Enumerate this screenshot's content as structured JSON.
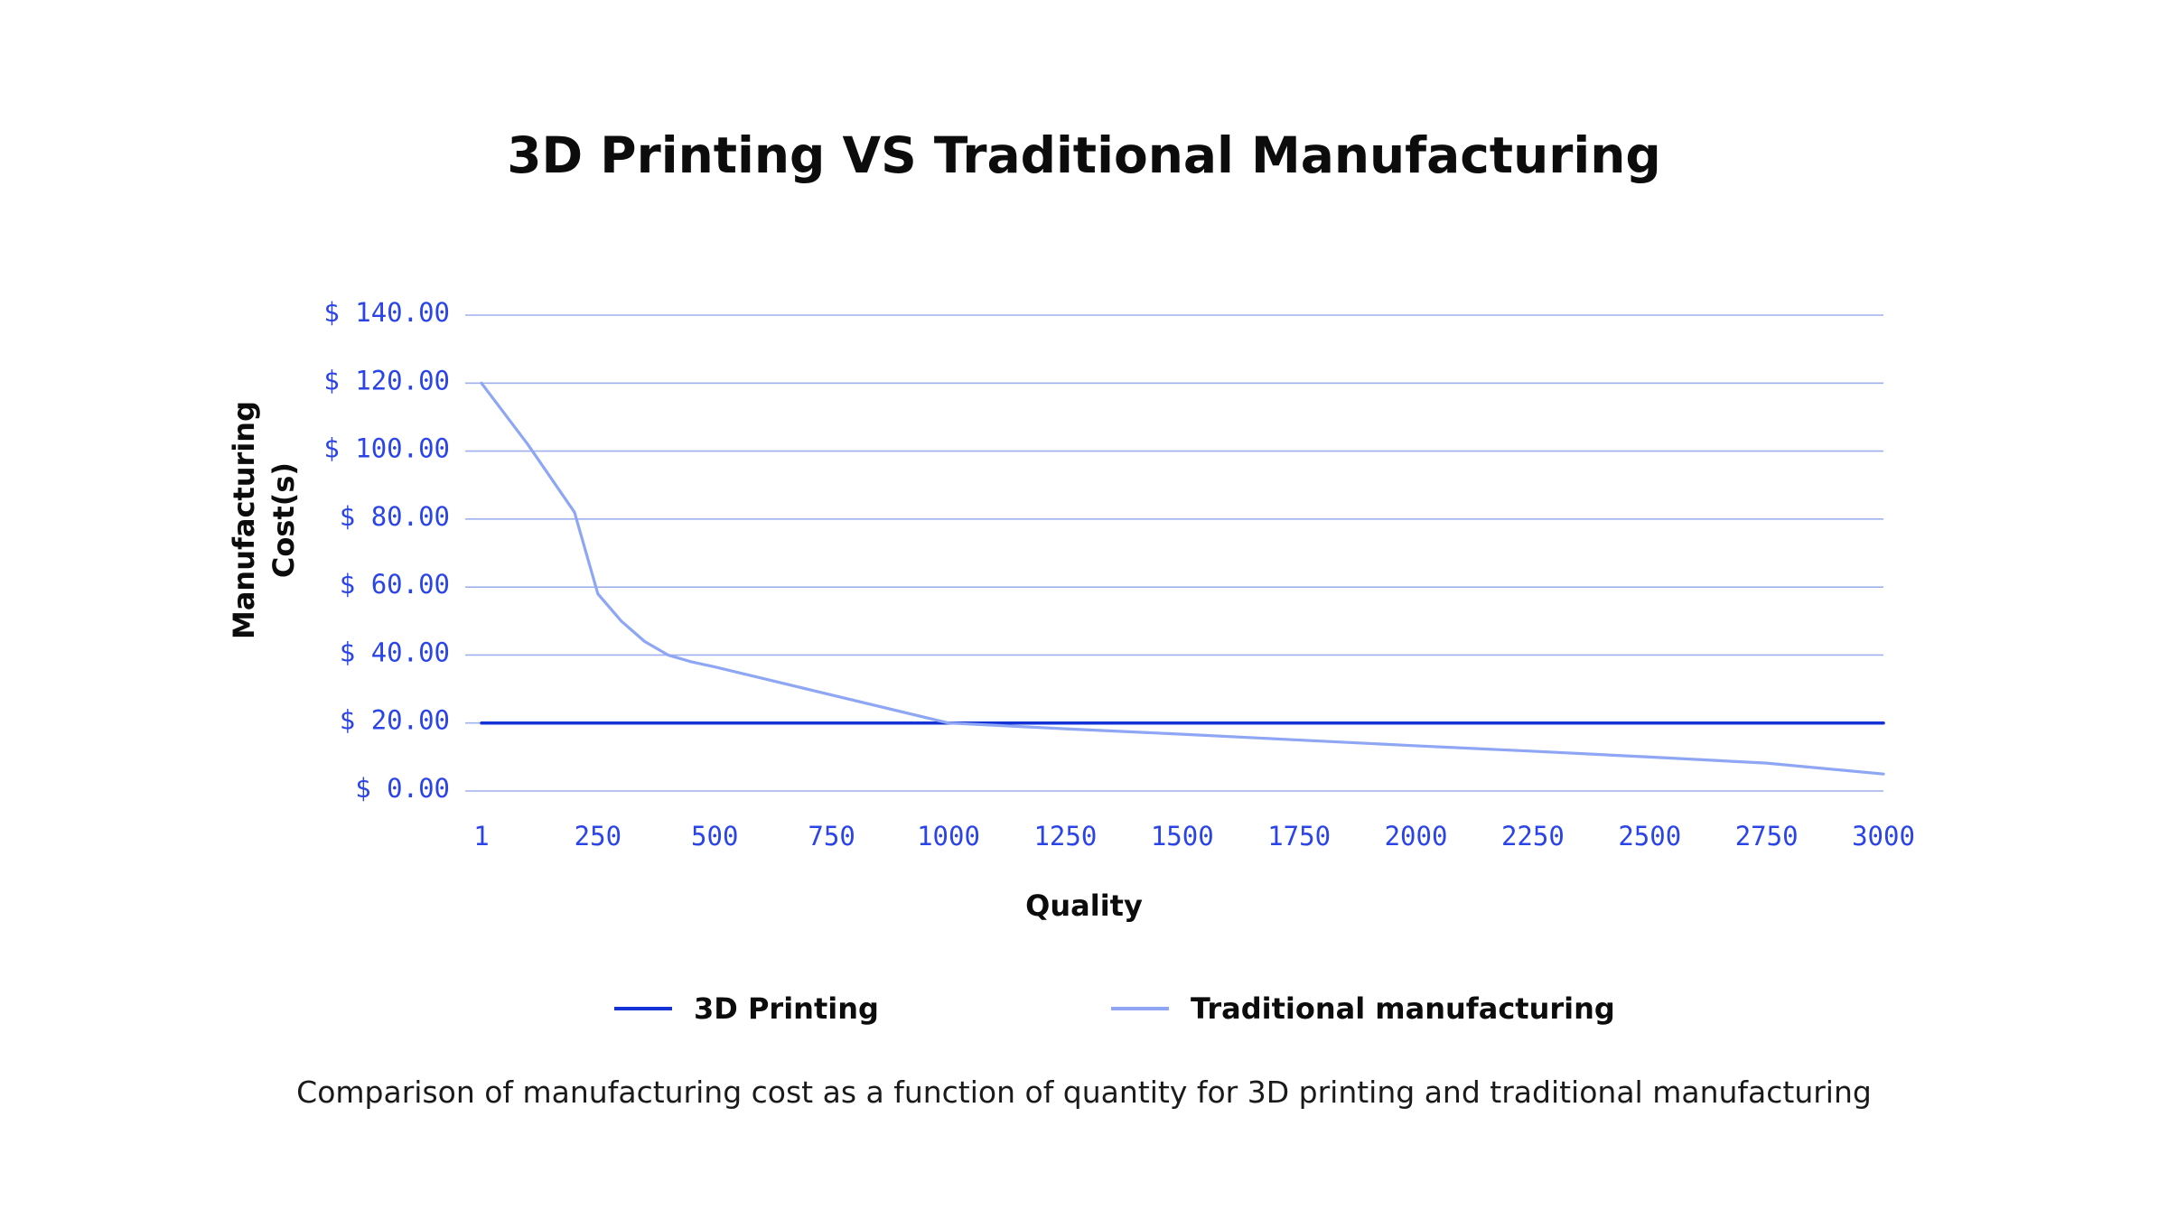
{
  "chart_data": {
    "type": "line",
    "title": "3D Printing VS Traditional Manufacturing",
    "xlabel": "Quality",
    "ylabel": "Manufacturing Cost(s)",
    "caption": "Comparison of manufacturing cost as a function of quantity for 3D printing and traditional manufacturing",
    "x_ticks": [
      "1",
      "250",
      "500",
      "750",
      "1000",
      "1250",
      "1500",
      "1750",
      "2000",
      "2250",
      "2500",
      "2750",
      "3000"
    ],
    "y_ticks": [
      "$ 0.00",
      "$ 20.00",
      "$ 40.00",
      "$ 60.00",
      "$ 80.00",
      "$ 100.00",
      "$ 120.00",
      "$ 140.00"
    ],
    "ylim": [
      0,
      140
    ],
    "grid": true,
    "legend_position": "bottom",
    "series": [
      {
        "name": "3D Printing",
        "color": "#1532d6",
        "points": [
          [
            1,
            20
          ],
          [
            3000,
            20
          ]
        ]
      },
      {
        "name": "Traditional manufacturing",
        "color": "#8ea6f4",
        "points": [
          [
            1,
            120
          ],
          [
            100,
            102
          ],
          [
            200,
            82
          ],
          [
            250,
            58
          ],
          [
            300,
            50
          ],
          [
            350,
            44
          ],
          [
            400,
            40
          ],
          [
            450,
            38
          ],
          [
            500,
            36.5
          ],
          [
            1000,
            20
          ],
          [
            1250,
            18.3
          ],
          [
            1500,
            16.7
          ],
          [
            1750,
            15
          ],
          [
            2000,
            13.3
          ],
          [
            2250,
            11.7
          ],
          [
            2500,
            10
          ],
          [
            2750,
            8.2
          ],
          [
            3000,
            5
          ]
        ]
      }
    ]
  },
  "legend": {
    "items": [
      {
        "label": "3D Printing",
        "color": "#1532d6"
      },
      {
        "label": "Traditional manufacturing",
        "color": "#8ea6f4"
      }
    ]
  }
}
